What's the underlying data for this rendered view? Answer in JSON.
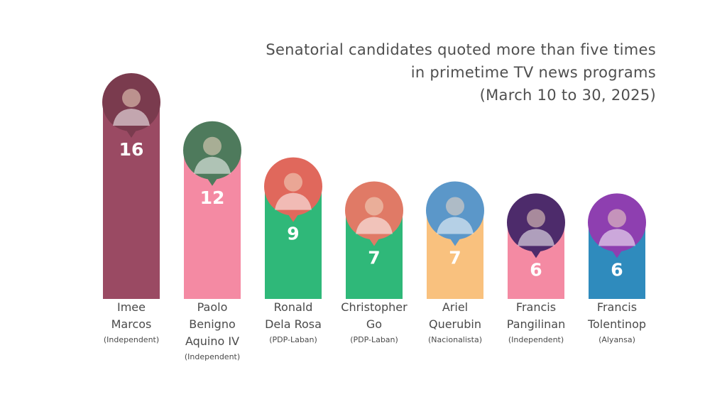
{
  "title_lines": [
    "Senatorial candidates quoted more than five times",
    "in primetime TV news programs",
    "(March 10 to 30, 2025)"
  ],
  "chart_data": {
    "type": "bar",
    "title": "Senatorial candidates quoted more than five times in primetime TV news programs (March 10 to 30, 2025)",
    "categories": [
      "Imee Marcos",
      "Paolo Benigno Aquino IV",
      "Ronald Dela Rosa",
      "Christopher Go",
      "Ariel Querubin",
      "Francis Pangilinan",
      "Francis Tolentinop"
    ],
    "values": [
      16,
      12,
      9,
      7,
      7,
      6,
      6
    ],
    "parties": [
      "(Independent)",
      "(Independent)",
      "(PDP-Laban)",
      "(PDP-Laban)",
      "(Nacionalista)",
      "(Independent)",
      "(Alyansa)"
    ],
    "name_lines": [
      [
        "Imee",
        "Marcos"
      ],
      [
        "Paolo",
        "Benigno",
        "Aquino IV"
      ],
      [
        "Ronald",
        "Dela Rosa"
      ],
      [
        "Christopher",
        "Go"
      ],
      [
        "Ariel",
        "Querubin"
      ],
      [
        "Francis",
        "Pangilinan"
      ],
      [
        "Francis",
        "Tolentinop"
      ]
    ],
    "colors": [
      "#9a4a63",
      "#f48aa3",
      "#2fb879",
      "#2fb879",
      "#f9c17e",
      "#f48aa3",
      "#2f8bbd"
    ],
    "photo_colors": [
      "#7a3b4e",
      "#4e7a5c",
      "#e0685c",
      "#e07a66",
      "#5b97c9",
      "#4d2b6b",
      "#8e3fb0"
    ],
    "photo_icons": [
      "person-photo-icon",
      "person-photo-icon",
      "person-photo-icon",
      "person-photo-icon",
      "person-photo-icon",
      "person-photo-icon",
      "person-photo-icon"
    ],
    "ylim": [
      0,
      16
    ],
    "xlabel": "",
    "ylabel": "",
    "legend": "none",
    "grid": false
  }
}
